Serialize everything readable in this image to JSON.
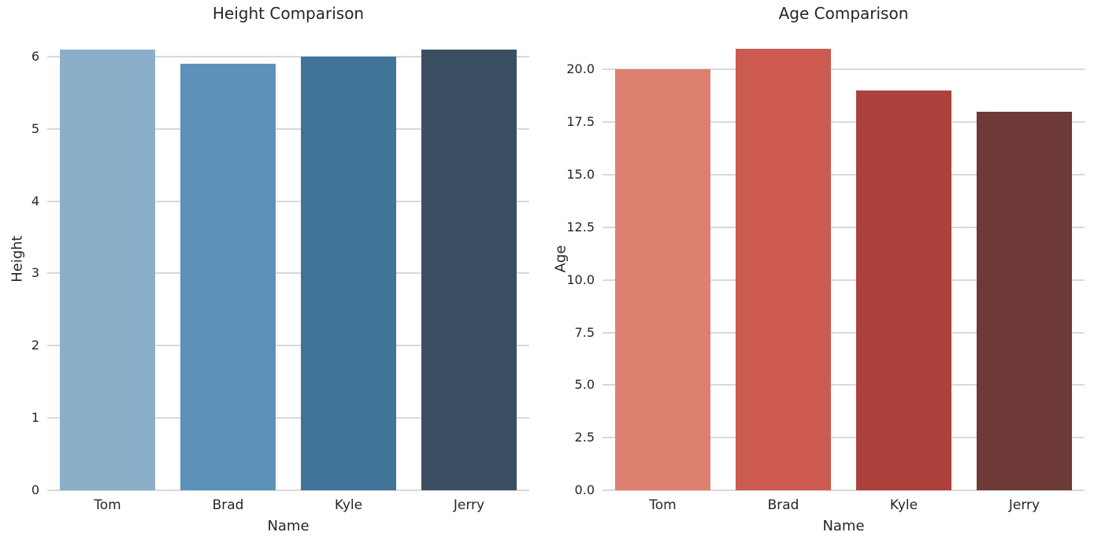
{
  "figure": {
    "background": "#ffffff",
    "text_color": "#262626",
    "grid_color": "#d9d9d9"
  },
  "chart_data": [
    {
      "type": "bar",
      "title": "Height Comparison",
      "xlabel": "Name",
      "ylabel": "Height",
      "categories": [
        "Tom",
        "Brad",
        "Kyle",
        "Jerry"
      ],
      "values": [
        6.1,
        5.9,
        6.0,
        6.1
      ],
      "bar_colors": [
        "#8bafc9",
        "#5c92ba",
        "#407398",
        "#3b4f63"
      ],
      "ylim": [
        0,
        6.4
      ],
      "yticks": [
        0,
        1,
        2,
        3,
        4,
        5,
        6
      ],
      "ytick_labels": [
        "0",
        "1",
        "2",
        "3",
        "4",
        "5",
        "6"
      ],
      "grid": true,
      "legend": false
    },
    {
      "type": "bar",
      "title": "Age Comparison",
      "xlabel": "Name",
      "ylabel": "Age",
      "categories": [
        "Tom",
        "Brad",
        "Kyle",
        "Jerry"
      ],
      "values": [
        20,
        21,
        19,
        18
      ],
      "bar_colors": [
        "#de8070",
        "#cd5a50",
        "#ad413c",
        "#6d3a37"
      ],
      "ylim": [
        0,
        22
      ],
      "yticks": [
        0,
        2.5,
        5,
        7.5,
        10,
        12.5,
        15,
        17.5,
        20
      ],
      "ytick_labels": [
        "0.0",
        "2.5",
        "5.0",
        "7.5",
        "10.0",
        "12.5",
        "15.0",
        "17.5",
        "20.0"
      ],
      "grid": true,
      "legend": false
    }
  ]
}
